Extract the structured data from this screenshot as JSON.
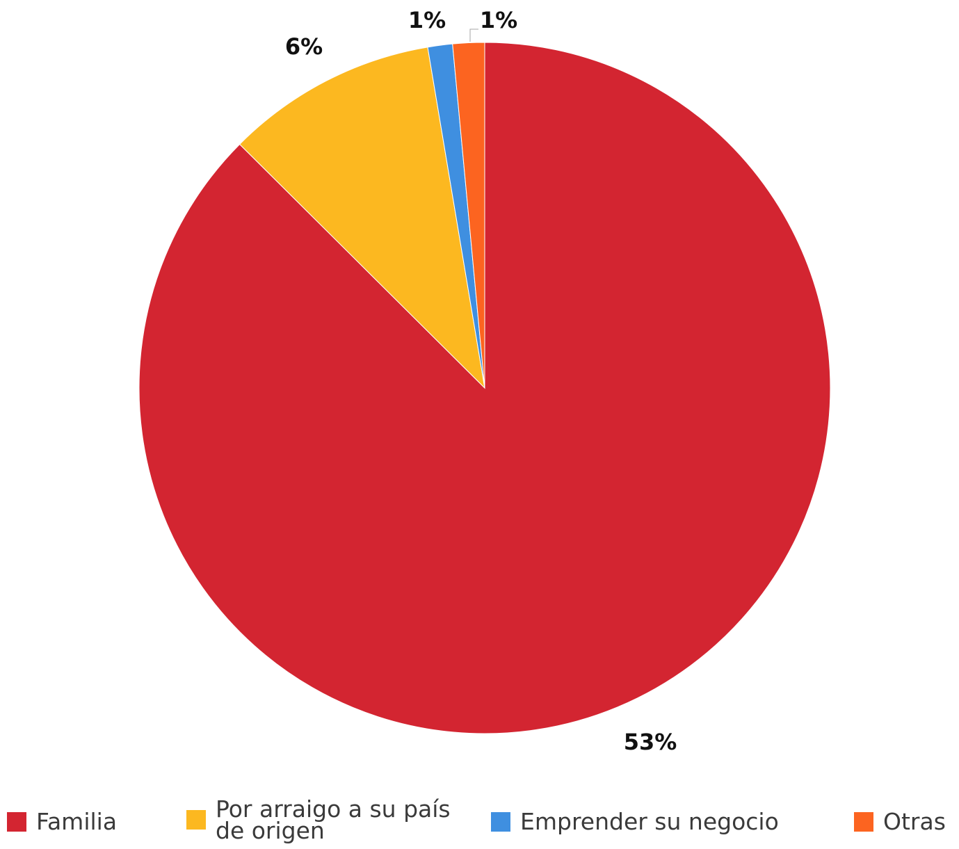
{
  "chart_data": {
    "type": "pie",
    "title": "",
    "slices": [
      {
        "name": "Familia",
        "value": 53,
        "label": "53%",
        "color": "#d32531"
      },
      {
        "name": "Por arraigo a su país de origen",
        "value": 6,
        "label": "6%",
        "color": "#fcb820"
      },
      {
        "name": "Emprender su negocio",
        "value": 0.7,
        "label": "1%",
        "color": "#3f8fe0"
      },
      {
        "name": "Otras",
        "value": 0.9,
        "label": "1%",
        "color": "#fc6420"
      }
    ],
    "legend_position": "bottom"
  },
  "legend": [
    {
      "label": "Familia",
      "color": "#d32531"
    },
    {
      "label": "Por arraigo a su país de origen",
      "color": "#fcb820"
    },
    {
      "label": "Emprender su negocio",
      "color": "#3f8fe0"
    },
    {
      "label": "Otras",
      "color": "#fc6420"
    }
  ]
}
